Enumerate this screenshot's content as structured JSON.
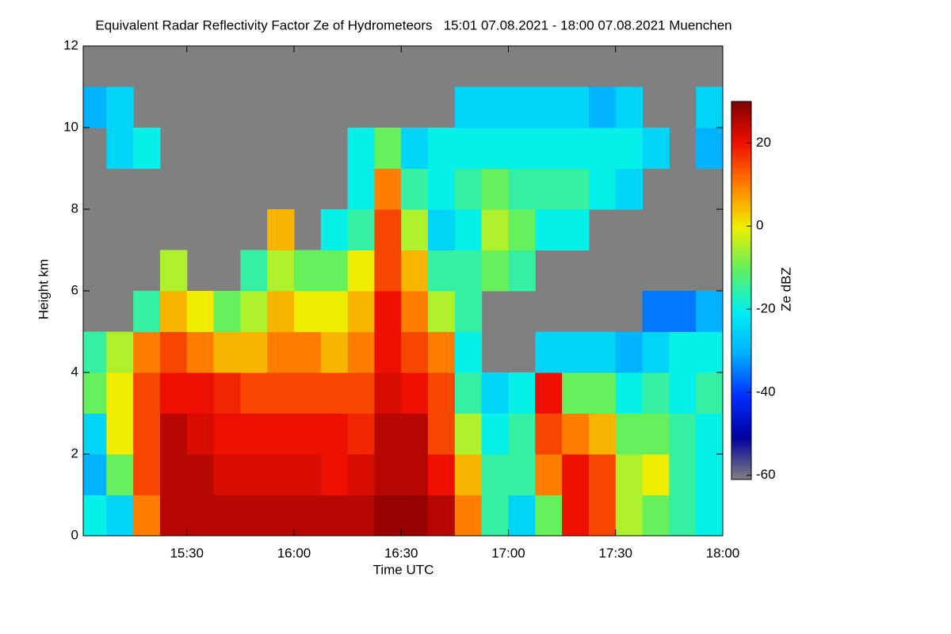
{
  "chart_data": {
    "type": "heatmap",
    "title": "Equivalent Radar Reflectivity Factor Ze of Hydrometeors   15:01 07.08.2021 - 18:00 07.08.2021 Muenchen",
    "xlabel": "Time UTC",
    "ylabel": "Height km",
    "colorbar_label": "Ze dBZ",
    "xlim": [
      901,
      1080
    ],
    "xticks": [
      {
        "value": 930,
        "label": "15:30"
      },
      {
        "value": 960,
        "label": "16:00"
      },
      {
        "value": 990,
        "label": "16:30"
      },
      {
        "value": 1020,
        "label": "17:00"
      },
      {
        "value": 1050,
        "label": "17:30"
      },
      {
        "value": 1080,
        "label": "18:00"
      }
    ],
    "ylim": [
      0,
      12
    ],
    "yticks": [
      0,
      2,
      4,
      6,
      8,
      10,
      12
    ],
    "clim": [
      -61,
      30
    ],
    "cticks": [
      20,
      0,
      -20,
      -40,
      -60
    ],
    "background": "#808080",
    "colormap": [
      "#808080",
      "#0000a0",
      "#0030ff",
      "#00b0ff",
      "#00f0f0",
      "#60f060",
      "#f0f000",
      "#ff8000",
      "#ee1000",
      "#800000"
    ],
    "xbins": [
      900,
      907.5,
      915,
      922.5,
      930,
      937.5,
      945,
      952.5,
      960,
      967.5,
      975,
      982.5,
      990,
      997.5,
      1005,
      1012.5,
      1020,
      1027.5,
      1035,
      1042.5,
      1050,
      1057.5,
      1065,
      1072.5,
      1080
    ],
    "ybins": [
      0,
      1,
      2,
      3,
      4,
      5,
      6,
      7,
      8,
      9,
      10,
      11,
      12
    ],
    "z": [
      [
        -20,
        -25,
        10,
        25,
        25,
        25,
        25,
        25,
        25,
        25,
        25,
        28,
        28,
        25,
        10,
        -15,
        -25,
        -10,
        20,
        15,
        -5,
        -10,
        -15,
        -20
      ],
      [
        -30,
        -10,
        15,
        25,
        25,
        22,
        22,
        22,
        22,
        20,
        22,
        25,
        25,
        20,
        5,
        -15,
        -15,
        10,
        20,
        15,
        -5,
        0,
        -15,
        -20
      ],
      [
        -25,
        0,
        15,
        25,
        22,
        20,
        20,
        20,
        20,
        20,
        18,
        25,
        25,
        15,
        -5,
        -20,
        -15,
        15,
        10,
        5,
        -10,
        -10,
        -15,
        -20
      ],
      [
        -10,
        0,
        15,
        20,
        20,
        18,
        15,
        15,
        15,
        15,
        15,
        22,
        20,
        15,
        -15,
        -25,
        -20,
        20,
        -10,
        -10,
        -20,
        -15,
        -20,
        -15
      ],
      [
        -15,
        -5,
        10,
        15,
        10,
        5,
        5,
        10,
        10,
        5,
        10,
        20,
        15,
        10,
        -20,
        null,
        null,
        -25,
        -25,
        -25,
        -30,
        -25,
        -20,
        -20
      ],
      [
        null,
        null,
        -15,
        5,
        0,
        -10,
        -5,
        5,
        0,
        0,
        5,
        20,
        10,
        -5,
        -15,
        null,
        null,
        null,
        null,
        null,
        null,
        -35,
        -35,
        -30
      ],
      [
        null,
        null,
        null,
        -5,
        null,
        null,
        -15,
        -5,
        -10,
        -10,
        0,
        15,
        5,
        -15,
        -15,
        -10,
        -15,
        null,
        null,
        null,
        null,
        null,
        null,
        null
      ],
      [
        null,
        null,
        null,
        null,
        null,
        null,
        null,
        5,
        null,
        -20,
        -15,
        15,
        -5,
        -25,
        -20,
        -5,
        -10,
        -20,
        -20,
        null,
        null,
        null,
        null,
        null
      ],
      [
        null,
        null,
        null,
        null,
        null,
        null,
        null,
        null,
        null,
        null,
        -20,
        10,
        -15,
        -20,
        -15,
        -10,
        -15,
        -15,
        -15,
        -20,
        -25,
        null,
        null,
        null
      ],
      [
        null,
        -25,
        -20,
        null,
        null,
        null,
        null,
        null,
        null,
        null,
        -20,
        -10,
        -25,
        -20,
        -20,
        -20,
        -20,
        -20,
        -20,
        -20,
        -20,
        -25,
        null,
        -30
      ],
      [
        -30,
        -25,
        null,
        null,
        null,
        null,
        null,
        null,
        null,
        null,
        null,
        null,
        null,
        null,
        -25,
        -25,
        -25,
        -25,
        -25,
        -30,
        -25,
        null,
        null,
        -25
      ],
      [
        null,
        null,
        null,
        null,
        null,
        null,
        null,
        null,
        null,
        null,
        null,
        null,
        null,
        null,
        null,
        null,
        null,
        null,
        null,
        null,
        null,
        null,
        null,
        null
      ]
    ]
  }
}
